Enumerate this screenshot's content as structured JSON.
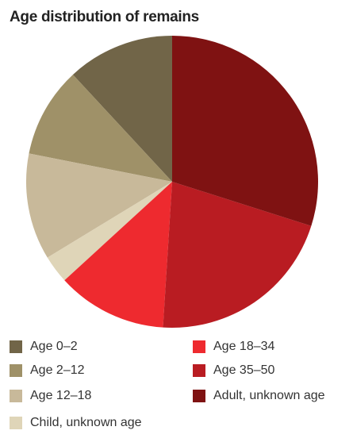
{
  "chart_data": {
    "type": "pie",
    "title": "Age distribution of remains",
    "categories": [
      "Age 0–2",
      "Age 2–12",
      "Age 12–18",
      "Child, unknown age",
      "Age 18–34",
      "Age 35–50",
      "Adult, unknown age"
    ],
    "values": [
      11.9,
      10.0,
      11.8,
      3.1,
      12.2,
      21.1,
      29.9
    ],
    "colors": [
      "#716548",
      "#9f9168",
      "#c8b99a",
      "#dfd5b8",
      "#ee2a2f",
      "#b91c22",
      "#7f1212"
    ]
  }
}
